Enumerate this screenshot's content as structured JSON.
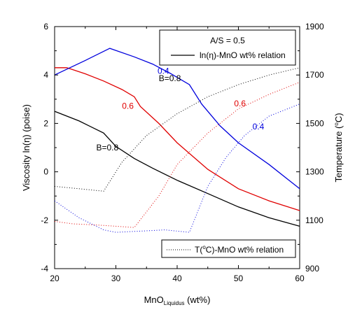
{
  "chart_data": {
    "type": "line",
    "x_axis": {
      "label_main": "MnO",
      "label_sub": "Liquidus",
      "label_unit": " (wt%)",
      "range": [
        20,
        60
      ],
      "ticks": [
        "20",
        "30",
        "40",
        "50",
        "60"
      ]
    },
    "y_axis_left": {
      "label": "Viscosity ln(η) (poise)",
      "range": [
        -4,
        6
      ],
      "ticks": [
        "-4",
        "-2",
        "0",
        "2",
        "4",
        "6"
      ]
    },
    "y_axis_right": {
      "label_pre": "Temperature (",
      "label_sup": "o",
      "label_post": "C)",
      "range": [
        900,
        1900
      ],
      "ticks": [
        "900",
        "1100",
        "1300",
        "1500",
        "1700",
        "1900"
      ]
    },
    "legend_top": {
      "title": "A/S = 0.5",
      "entry": "ln(η)-MnO wt% relation",
      "placement": "top-right"
    },
    "legend_bottom": {
      "entry_pre": "T(",
      "entry_sup": "o",
      "entry_post": "C)-MnO wt% relation",
      "placement": "bottom-right"
    },
    "viscosity_series": [
      {
        "name": "B=0.8",
        "color": "#000000",
        "x": [
          20,
          24,
          28,
          30,
          33,
          36,
          40,
          45,
          50,
          55,
          60
        ],
        "y": [
          2.5,
          2.1,
          1.6,
          1.05,
          0.55,
          0.15,
          -0.35,
          -0.9,
          -1.45,
          -1.9,
          -2.25
        ]
      },
      {
        "name": "0.6",
        "color": "#e00000",
        "x": [
          20,
          22,
          25,
          28,
          31,
          33,
          34,
          37,
          40,
          45,
          50,
          55,
          60
        ],
        "y": [
          4.3,
          4.3,
          4.05,
          3.75,
          3.4,
          3.1,
          2.7,
          2.0,
          1.2,
          0.1,
          -0.7,
          -1.2,
          -1.6
        ]
      },
      {
        "name": "0.4",
        "color": "#0000dd",
        "x": [
          20,
          25,
          29,
          33,
          36,
          39,
          42,
          44,
          47,
          50,
          55,
          60
        ],
        "y": [
          4.0,
          4.6,
          5.1,
          4.75,
          4.45,
          4.05,
          3.6,
          2.8,
          1.9,
          1.2,
          0.3,
          -0.7
        ]
      }
    ],
    "temperature_series": [
      {
        "name": "B=0.8",
        "color": "#000000",
        "x": [
          20,
          24,
          28,
          31,
          35,
          40,
          45,
          50,
          55,
          60
        ],
        "y": [
          1240,
          1230,
          1220,
          1340,
          1450,
          1540,
          1610,
          1660,
          1700,
          1730
        ]
      },
      {
        "name": "0.6",
        "color": "#e00000",
        "x": [
          20,
          23,
          27,
          30,
          33,
          37,
          40,
          45,
          50,
          55,
          60
        ],
        "y": [
          1095,
          1085,
          1080,
          1075,
          1070,
          1200,
          1330,
          1460,
          1560,
          1620,
          1670
        ]
      },
      {
        "name": "0.4",
        "color": "#0000dd",
        "x": [
          20,
          24,
          28,
          30,
          34,
          38,
          42,
          45,
          48,
          51,
          55,
          60
        ],
        "y": [
          1180,
          1110,
          1060,
          1050,
          1055,
          1060,
          1050,
          1240,
          1360,
          1450,
          1530,
          1580
        ]
      }
    ],
    "annotations": [
      {
        "text": "B=0.8",
        "x": 37.0,
        "y_visc": 3.75,
        "color": "#000000"
      },
      {
        "text": "0.4",
        "x": 36.8,
        "y_visc": 4.05,
        "color": "#0000dd"
      },
      {
        "text": "0.6",
        "x": 31.0,
        "y_visc": 2.6,
        "color": "#e00000"
      },
      {
        "text": "0.6",
        "x": 49.3,
        "y_visc": 2.7,
        "color": "#e00000"
      },
      {
        "text": "0.4",
        "x": 52.3,
        "y_visc": 1.75,
        "color": "#0000dd"
      },
      {
        "text": "B=0.8",
        "x": 26.8,
        "y_visc": 0.88,
        "color": "#000000"
      }
    ]
  }
}
